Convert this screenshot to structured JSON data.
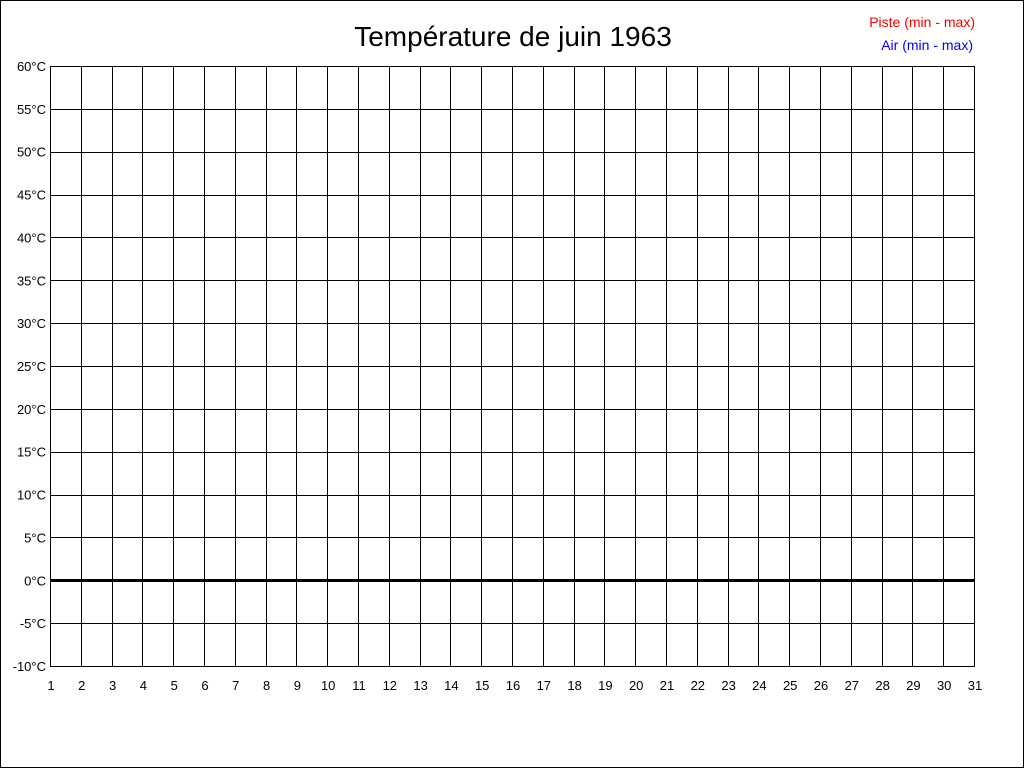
{
  "chart_data": {
    "type": "line",
    "title": "Température de juin 1963",
    "xlabel": "",
    "ylabel": "",
    "x_ticks": [
      1,
      2,
      3,
      4,
      5,
      6,
      7,
      8,
      9,
      10,
      11,
      12,
      13,
      14,
      15,
      16,
      17,
      18,
      19,
      20,
      21,
      22,
      23,
      24,
      25,
      26,
      27,
      28,
      29,
      30,
      31
    ],
    "y_ticks": [
      "60°C",
      "55°C",
      "50°C",
      "45°C",
      "40°C",
      "35°C",
      "30°C",
      "25°C",
      "20°C",
      "15°C",
      "10°C",
      "5°C",
      "0°C",
      "-5°C",
      "-10°C"
    ],
    "xlim": [
      1,
      31
    ],
    "ylim": [
      -10,
      60
    ],
    "grid": true,
    "legend_placement": "top-right",
    "series": [
      {
        "name": "Piste (min - max)",
        "color": "#ff0000",
        "values": []
      },
      {
        "name": "Air (min - max)",
        "color": "#0000ff",
        "values": []
      }
    ]
  }
}
